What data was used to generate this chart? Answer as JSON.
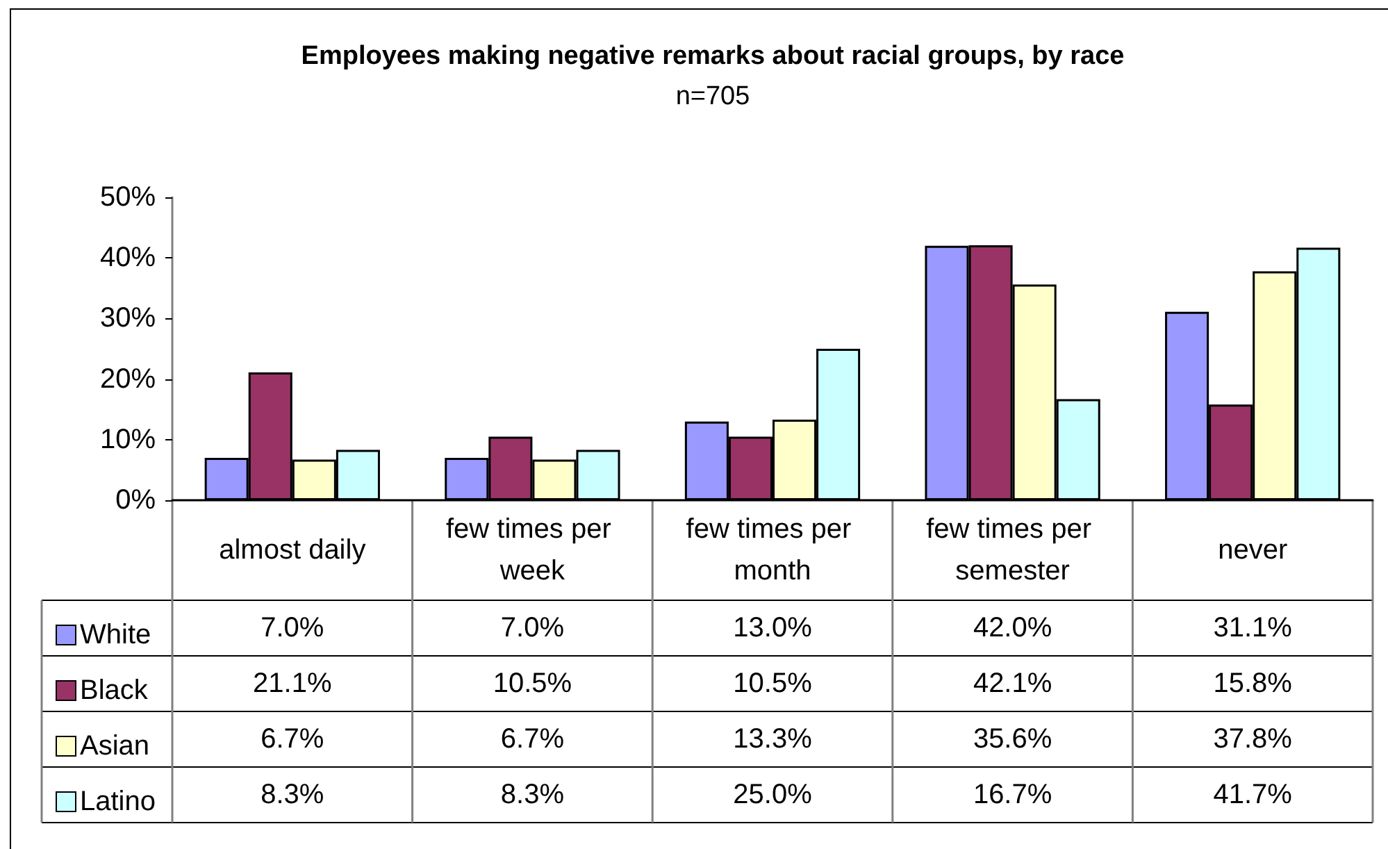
{
  "chart_data": {
    "type": "bar",
    "title": "Employees making negative remarks about racial groups, by race",
    "subtitle": "n=705",
    "categories": [
      "almost daily",
      "few times per week",
      "few times per month",
      "few times per semester",
      "never"
    ],
    "series": [
      {
        "name": "White",
        "color": "#9999ff",
        "values": [
          7.0,
          7.0,
          13.0,
          42.0,
          31.1
        ],
        "value_labels": [
          "7.0%",
          "7.0%",
          "13.0%",
          "42.0%",
          "31.1%"
        ]
      },
      {
        "name": "Black",
        "color": "#993366",
        "values": [
          21.1,
          10.5,
          10.5,
          42.1,
          15.8
        ],
        "value_labels": [
          "21.1%",
          "10.5%",
          "10.5%",
          "42.1%",
          "15.8%"
        ]
      },
      {
        "name": "Asian",
        "color": "#ffffcc",
        "values": [
          6.7,
          6.7,
          13.3,
          35.6,
          37.8
        ],
        "value_labels": [
          "6.7%",
          "6.7%",
          "13.3%",
          "35.6%",
          "37.8%"
        ]
      },
      {
        "name": "Latino",
        "color": "#ccffff",
        "values": [
          8.3,
          8.3,
          25.0,
          16.7,
          41.7
        ],
        "value_labels": [
          "8.3%",
          "8.3%",
          "25.0%",
          "16.7%",
          "41.7%"
        ]
      }
    ],
    "ylim": [
      0,
      50
    ],
    "yticks": [
      {
        "value": 0,
        "label": "0%"
      },
      {
        "value": 10,
        "label": "10%"
      },
      {
        "value": 20,
        "label": "20%"
      },
      {
        "value": 30,
        "label": "30%"
      },
      {
        "value": 40,
        "label": "40%"
      },
      {
        "value": 50,
        "label": "50%"
      }
    ],
    "grid": false,
    "legend": "bottom left"
  }
}
